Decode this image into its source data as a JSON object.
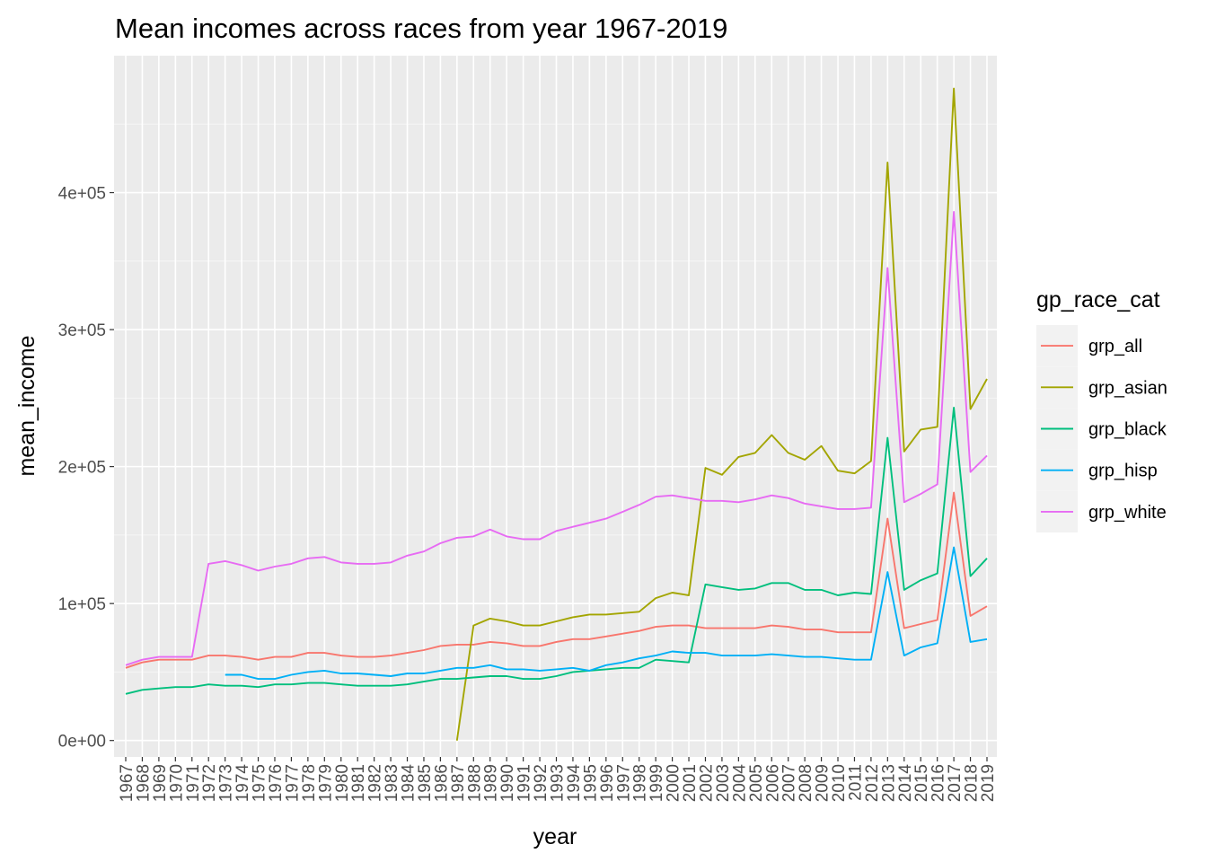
{
  "chart_data": {
    "type": "line",
    "title": "Mean incomes across races from year 1967-2019",
    "xlabel": "year",
    "ylabel": "mean_income",
    "ylim": [
      -12000,
      500000
    ],
    "yticks": [
      0,
      100000,
      200000,
      300000,
      400000
    ],
    "ytick_labels": [
      "0e+00",
      "1e+05",
      "2e+05",
      "3e+05",
      "4e+05"
    ],
    "grid": true,
    "legend": {
      "title": "gp_race_cat",
      "position": "right"
    },
    "categories": [
      "1967",
      "1968",
      "1969",
      "1970",
      "1971",
      "1972",
      "1973",
      "1974",
      "1975",
      "1976",
      "1977",
      "1978",
      "1979",
      "1980",
      "1981",
      "1982",
      "1983",
      "1984",
      "1985",
      "1986",
      "1987",
      "1988",
      "1989",
      "1990",
      "1991",
      "1992",
      "1993",
      "1994",
      "1995",
      "1996",
      "1997",
      "1998",
      "1999",
      "2000",
      "2001",
      "2002",
      "2003",
      "2004",
      "2005",
      "2006",
      "2007",
      "2008",
      "2009",
      "2010",
      "2011",
      "2012",
      "2013",
      "2014",
      "2015",
      "2016",
      "2017",
      "2018",
      "2019"
    ],
    "series": [
      {
        "name": "grp_all",
        "color": "#F8766D",
        "values": [
          53000,
          57000,
          59000,
          59000,
          59000,
          62000,
          62000,
          61000,
          59000,
          61000,
          61000,
          64000,
          64000,
          62000,
          61000,
          61000,
          62000,
          64000,
          66000,
          69000,
          70000,
          70000,
          72000,
          71000,
          69000,
          69000,
          72000,
          74000,
          74000,
          76000,
          78000,
          80000,
          83000,
          84000,
          84000,
          82000,
          82000,
          82000,
          82000,
          84000,
          83000,
          81000,
          81000,
          79000,
          79000,
          79000,
          162000,
          82000,
          85000,
          88000,
          181000,
          91000,
          98000
        ]
      },
      {
        "name": "grp_asian",
        "color": "#A3A500",
        "values": [
          null,
          null,
          null,
          null,
          null,
          null,
          null,
          null,
          null,
          null,
          null,
          null,
          null,
          null,
          null,
          null,
          null,
          null,
          null,
          null,
          0,
          84000,
          89000,
          87000,
          84000,
          84000,
          87000,
          90000,
          92000,
          92000,
          93000,
          94000,
          104000,
          108000,
          106000,
          199000,
          194000,
          207000,
          210000,
          223000,
          210000,
          205000,
          215000,
          197000,
          195000,
          204000,
          422000,
          211000,
          227000,
          229000,
          476000,
          242000,
          264000
        ]
      },
      {
        "name": "grp_black",
        "color": "#00BF7D",
        "values": [
          34000,
          37000,
          38000,
          39000,
          39000,
          41000,
          40000,
          40000,
          39000,
          41000,
          41000,
          42000,
          42000,
          41000,
          40000,
          40000,
          40000,
          41000,
          43000,
          45000,
          45000,
          46000,
          47000,
          47000,
          45000,
          45000,
          47000,
          50000,
          51000,
          52000,
          53000,
          53000,
          59000,
          58000,
          57000,
          114000,
          112000,
          110000,
          111000,
          115000,
          115000,
          110000,
          110000,
          106000,
          108000,
          107000,
          221000,
          110000,
          117000,
          122000,
          243000,
          120000,
          133000
        ]
      },
      {
        "name": "grp_hisp",
        "color": "#00B0F6",
        "values": [
          null,
          null,
          null,
          null,
          null,
          null,
          48000,
          48000,
          45000,
          45000,
          48000,
          50000,
          51000,
          49000,
          49000,
          48000,
          47000,
          49000,
          49000,
          51000,
          53000,
          53000,
          55000,
          52000,
          52000,
          51000,
          52000,
          53000,
          51000,
          55000,
          57000,
          60000,
          62000,
          65000,
          64000,
          64000,
          62000,
          62000,
          62000,
          63000,
          62000,
          61000,
          61000,
          60000,
          59000,
          59000,
          123000,
          62000,
          68000,
          71000,
          141000,
          72000,
          74000
        ]
      },
      {
        "name": "grp_white",
        "color": "#E76BF3",
        "values": [
          55000,
          59000,
          61000,
          61000,
          61000,
          129000,
          131000,
          128000,
          124000,
          127000,
          129000,
          133000,
          134000,
          130000,
          129000,
          129000,
          130000,
          135000,
          138000,
          144000,
          148000,
          149000,
          154000,
          149000,
          147000,
          147000,
          153000,
          156000,
          159000,
          162000,
          167000,
          172000,
          178000,
          179000,
          177000,
          175000,
          175000,
          174000,
          176000,
          179000,
          177000,
          173000,
          171000,
          169000,
          169000,
          170000,
          345000,
          174000,
          180000,
          187000,
          386000,
          196000,
          208000
        ]
      }
    ]
  }
}
